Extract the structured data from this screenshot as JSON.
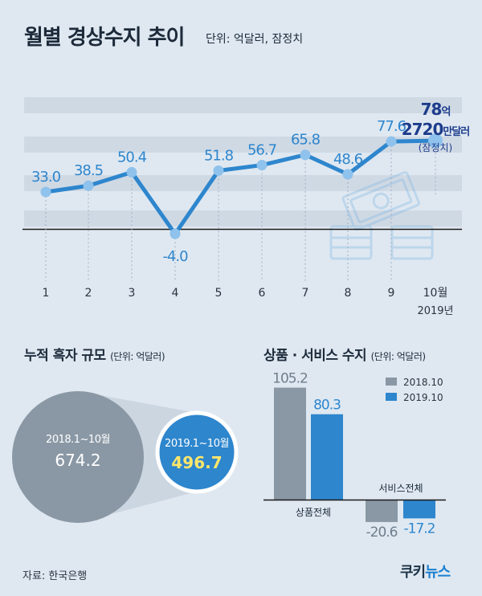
{
  "header": {
    "title": "월별 경상수지 추이",
    "unit": "단위: 억달러, 잠정치"
  },
  "chart_data": [
    {
      "type": "line",
      "x": [
        "1",
        "2",
        "3",
        "4",
        "5",
        "6",
        "7",
        "8",
        "9",
        "10월"
      ],
      "x_extra_label": "2019년",
      "series": [
        {
          "values": [
            33.0,
            38.5,
            50.4,
            -4.0,
            51.8,
            56.7,
            65.8,
            48.6,
            77.6,
            78.27
          ]
        }
      ],
      "point_labels": [
        "33.0",
        "38.5",
        "50.4",
        "-4.0",
        "51.8",
        "56.7",
        "65.8",
        "48.6",
        "77.6"
      ],
      "last_point_callout": {
        "line1_num": "78",
        "line1_unit": "억",
        "line2_num": "2720",
        "line2_unit": "만달러",
        "line3": "(잠정치)"
      },
      "color": "#2e86cd"
    },
    {
      "type": "bar",
      "title": "누적 흑자 규모",
      "unit": "(단위: 억달러)",
      "categories": [
        "2018.1~10월",
        "2019.1~10월"
      ],
      "values": [
        674.2,
        496.7
      ],
      "value_labels": [
        "674.2",
        "496.7"
      ],
      "colors": [
        "#8a98a5",
        "#2e86cd"
      ]
    },
    {
      "type": "bar",
      "title": "상품 · 서비스 수지",
      "unit": "(단위: 억달러)",
      "categories": [
        "상품전체",
        "서비스전체"
      ],
      "series": [
        {
          "name": "2018.10",
          "values": [
            105.2,
            -20.6
          ],
          "labels": [
            "105.2",
            "-20.6"
          ],
          "color": "#8a98a5"
        },
        {
          "name": "2019.10",
          "values": [
            80.3,
            -17.2
          ],
          "labels": [
            "80.3",
            "-17.2"
          ],
          "color": "#2e86cd"
        }
      ]
    }
  ],
  "footer": {
    "source": "자료: 한국은행",
    "logo_a": "쿠키",
    "logo_b": "뉴스"
  }
}
